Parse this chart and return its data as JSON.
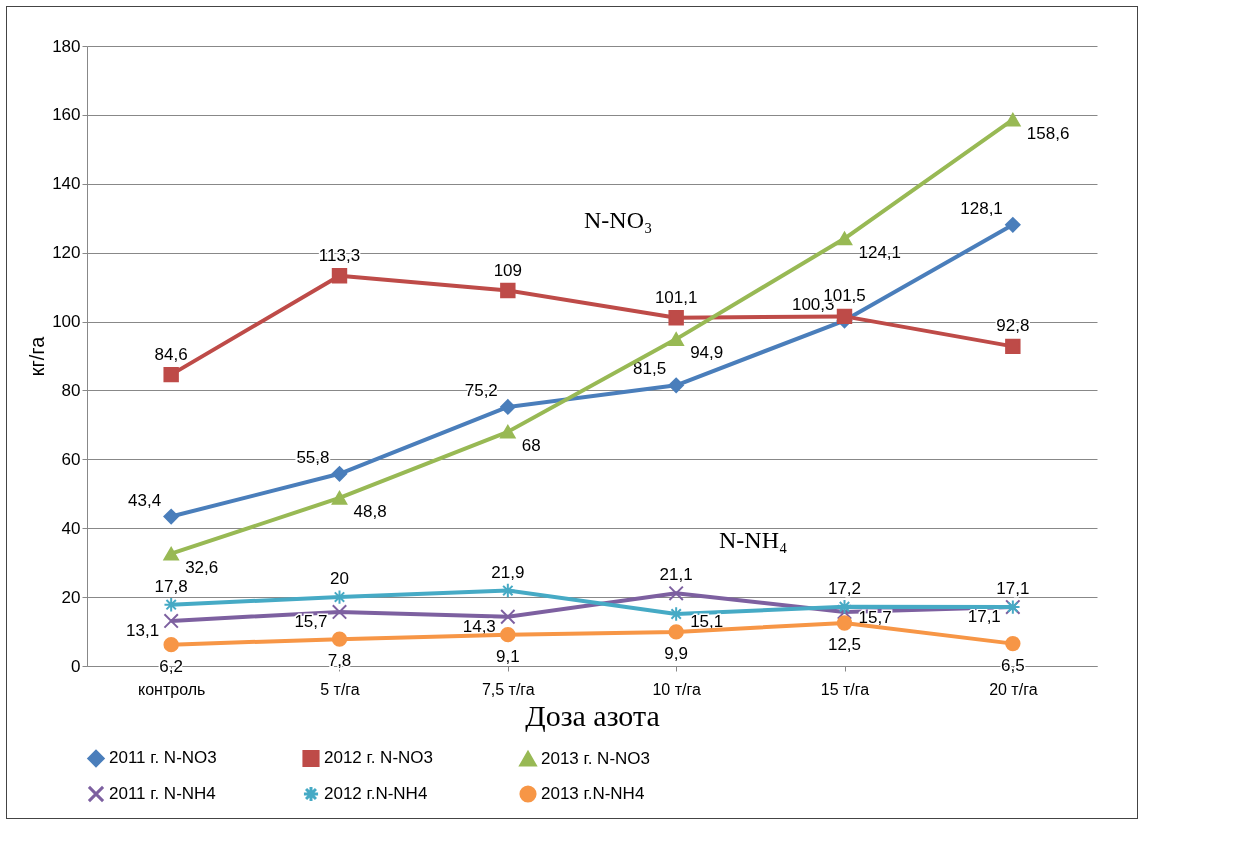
{
  "chart_data": {
    "type": "line",
    "xlabel": "Доза азота",
    "ylabel": "кг/га",
    "categories": [
      "контроль",
      "5 т/га",
      "7,5 т/га",
      "10 т/га",
      "15 т/га",
      "20 т/га"
    ],
    "ylim": [
      0,
      180
    ],
    "yticks": [
      0,
      20,
      40,
      60,
      80,
      100,
      120,
      140,
      160,
      180
    ],
    "grid": "y",
    "legend": "bottom",
    "annotations": [
      "N-NO₃",
      "N-NH₄"
    ],
    "series": [
      {
        "name": "2011 г. N-NO3",
        "color": "#4a7ebb",
        "marker": "diamond",
        "values": [
          43.4,
          55.8,
          75.2,
          81.5,
          100.3,
          128.1
        ],
        "value_labels": [
          "43,4",
          "55,8",
          "75,2",
          "81,5",
          "100,3",
          "128,1"
        ]
      },
      {
        "name": "2012 г. N-NO3",
        "color": "#be4b48",
        "marker": "square",
        "values": [
          84.6,
          113.3,
          109,
          101.1,
          101.5,
          92.8
        ],
        "value_labels": [
          "84,6",
          "113,3",
          "109",
          "101,1",
          "101,5",
          "92,8"
        ]
      },
      {
        "name": "2013 г. N-NO3",
        "color": "#98b954",
        "marker": "triangle",
        "values": [
          32.6,
          48.8,
          68,
          94.9,
          124.1,
          158.6
        ],
        "value_labels": [
          "32,6",
          "48,8",
          "68",
          "94,9",
          "124,1",
          "158,6"
        ]
      },
      {
        "name": "2011 г. N-NH4",
        "color": "#7d60a0",
        "marker": "cross",
        "values": [
          13.1,
          15.7,
          14.3,
          21.1,
          15.7,
          17.1
        ],
        "value_labels": [
          "13,1",
          "15,7",
          "14,3",
          "21,1",
          "15,7",
          "17,1"
        ]
      },
      {
        "name": "2012 г.N-NH4",
        "color": "#46aac5",
        "marker": "cross",
        "values": [
          17.8,
          20,
          21.9,
          15.1,
          17.2,
          17.1
        ],
        "value_labels": [
          "17,8",
          "20",
          "21,9",
          "15,1",
          "17,2",
          "17,1"
        ]
      },
      {
        "name": "2013 г.N-NH4",
        "color": "#f79646",
        "marker": "circle",
        "values": [
          6.2,
          7.8,
          9.1,
          9.9,
          12.5,
          6.5
        ],
        "value_labels": [
          "6,2",
          "7,8",
          "9,1",
          "9,9",
          "12,5",
          "6,5"
        ]
      }
    ]
  }
}
